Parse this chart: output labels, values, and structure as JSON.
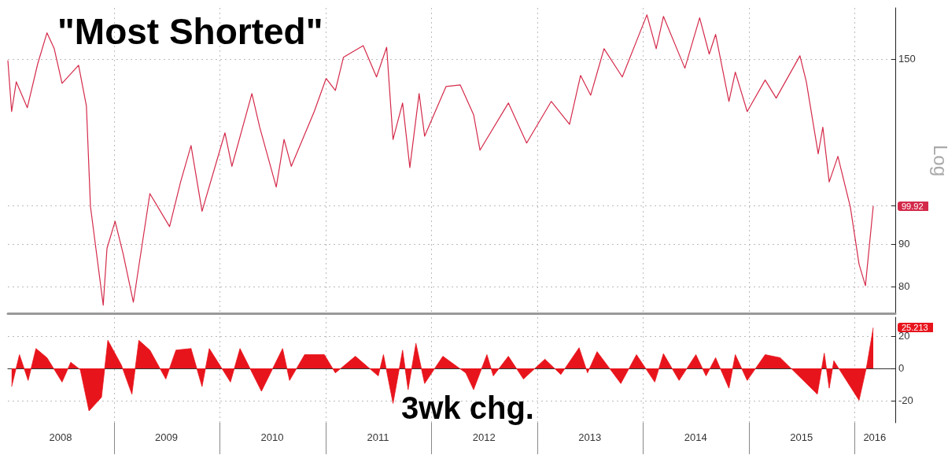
{
  "chart_data": [
    {
      "type": "line",
      "title": "\"Most Shorted\"",
      "ylabel": "Log",
      "log": "y",
      "grid": true,
      "tick_labels": "y",
      "xlim": [
        "2008-01-01",
        "2016-05-20"
      ],
      "ylim": [
        74.3,
        172.7
      ],
      "xticks": [
        {
          "value": "2009-01-01",
          "label": null
        },
        {
          "value": "2010-01-01",
          "label": null
        },
        {
          "value": "2011-01-01",
          "label": null
        },
        {
          "value": "2012-01-01",
          "label": null
        },
        {
          "value": "2013-01-01",
          "label": null
        },
        {
          "value": "2014-01-01",
          "label": null
        },
        {
          "value": "2015-01-01",
          "label": null
        },
        {
          "value": "2016-01-01",
          "label": null
        }
      ],
      "yticks": [
        80,
        90,
        {
          "value": 100,
          "label": null
        },
        150
      ],
      "value_labels": [
        null,
        null,
        null,
        null,
        null,
        null,
        null,
        null,
        null,
        null,
        null,
        null,
        null,
        null,
        null,
        null,
        null,
        null,
        null,
        null,
        null,
        null,
        null,
        null,
        null,
        null,
        null,
        null,
        null,
        null,
        null,
        null,
        null,
        null,
        null,
        null,
        null,
        null,
        null,
        null,
        null,
        null,
        null,
        null,
        null,
        null,
        null,
        null,
        null,
        null,
        null,
        null,
        null,
        null,
        null,
        null,
        null,
        null,
        null,
        null,
        null,
        null,
        null,
        null,
        null,
        null,
        null,
        null,
        null,
        null,
        null,
        null,
        null,
        "99.92"
      ],
      "series": [
        {
          "color": "#d42a4a",
          "x": [
            "2008-01-01",
            "2008-01-14",
            "2008-01-30",
            "2008-03-08",
            "2008-04-13",
            "2008-05-15",
            "2008-06-09",
            "2008-07-06",
            "2008-09-01",
            "2008-09-28",
            "2008-10-12",
            "2008-11-25",
            "2008-12-08",
            "2009-01-05",
            "2009-02-02",
            "2009-03-09",
            "2009-05-05",
            "2009-07-12",
            "2009-08-19",
            "2009-09-24",
            "2009-11-01",
            "2010-01-19",
            "2010-02-12",
            "2010-04-22",
            "2010-05-19",
            "2010-07-15",
            "2010-08-11",
            "2010-09-05",
            "2010-11-23",
            "2011-01-03",
            "2011-02-04",
            "2011-03-04",
            "2011-05-11",
            "2011-06-26",
            "2011-07-31",
            "2011-08-22",
            "2011-09-24",
            "2011-10-19",
            "2011-11-20",
            "2011-12-09",
            "2012-02-21",
            "2012-04-10",
            "2012-05-26",
            "2012-06-17",
            "2012-09-23",
            "2012-11-25",
            "2013-02-18",
            "2013-04-22",
            "2013-05-30",
            "2013-07-04",
            "2013-08-19",
            "2013-10-21",
            "2014-01-14",
            "2014-02-15",
            "2014-03-12",
            "2014-05-25",
            "2014-07-15",
            "2014-08-17",
            "2014-09-08",
            "2014-10-24",
            "2014-11-15",
            "2014-12-26",
            "2015-02-26",
            "2015-04-05",
            "2015-06-26",
            "2015-07-18",
            "2015-08-28",
            "2015-09-13",
            "2015-10-05",
            "2015-11-04",
            "2015-12-17",
            "2016-01-16",
            "2016-02-07",
            "2016-03-05"
          ],
          "values": [
            149.4,
            129.7,
            140.8,
            131.1,
            148.0,
            161.2,
            154.3,
            140.2,
            147.4,
            131.7,
            99.8,
            76.0,
            88.9,
            95.8,
            87.5,
            76.6,
            103.4,
            94.4,
            106.8,
            118.1,
            98.5,
            122.3,
            111.5,
            136.3,
            124.2,
            105.3,
            120.1,
            111.5,
            129.7,
            142.1,
            137.5,
            150.7,
            155.6,
            142.7,
            154.9,
            120.1,
            132.8,
            111.1,
            136.3,
            121.2,
            139.0,
            139.6,
            128.6,
            116.6,
            132.8,
            118.9,
            133.4,
            125.2,
            143.3,
            135.7,
            154.3,
            142.7,
            169.4,
            154.3,
            168.7,
            146.2,
            168.0,
            152.0,
            160.5,
            133.4,
            144.6,
            129.7,
            141.5,
            134.6,
            151.3,
            140.8,
            115.4,
            124.2,
            106.8,
            114.6,
            99.6,
            85.1,
            80.2,
            99.92
          ]
        }
      ]
    },
    {
      "type": "area",
      "title": "3wk chg.",
      "grid": true,
      "xlim": [
        "2008-01-01",
        "2016-05-20"
      ],
      "ylim": [
        -33.7,
        31.7
      ],
      "xticks": [
        {
          "value": "2008-07-01",
          "label": "2008"
        },
        {
          "value": "2009-01-01",
          "label": null
        },
        {
          "value": "2009-07-01",
          "label": "2009"
        },
        {
          "value": "2010-01-01",
          "label": null
        },
        {
          "value": "2010-07-01",
          "label": "2010"
        },
        {
          "value": "2011-01-01",
          "label": null
        },
        {
          "value": "2011-07-01",
          "label": "2011"
        },
        {
          "value": "2012-01-01",
          "label": null
        },
        {
          "value": "2012-07-01",
          "label": "2012"
        },
        {
          "value": "2013-01-01",
          "label": null
        },
        {
          "value": "2013-07-01",
          "label": "2013"
        },
        {
          "value": "2014-01-01",
          "label": null
        },
        {
          "value": "2014-07-01",
          "label": "2014"
        },
        {
          "value": "2015-01-01",
          "label": null
        },
        {
          "value": "2015-07-01",
          "label": "2015"
        },
        {
          "value": "2016-01-01",
          "label": null
        },
        {
          "value": "2016-03-10",
          "label": "2016"
        }
      ],
      "yticks": [
        -20,
        0,
        20
      ],
      "value_labels": [
        null,
        null,
        null,
        null,
        null,
        null,
        null,
        null,
        null,
        null,
        null,
        null,
        null,
        null,
        null,
        null,
        null,
        null,
        null,
        null,
        null,
        null,
        null,
        null,
        null,
        null,
        null,
        null,
        null,
        null,
        null,
        null,
        null,
        null,
        null,
        null,
        null,
        null,
        null,
        null,
        null,
        null,
        null,
        null,
        null,
        null,
        null,
        null,
        null,
        null,
        null,
        null,
        null,
        null,
        null,
        null,
        null,
        null,
        null,
        null,
        null,
        null,
        null,
        null,
        null,
        null,
        null,
        "25.213"
      ],
      "series": [
        {
          "color": "#e8141c",
          "x": [
            "2008-01-14",
            "2008-02-10",
            "2008-03-11",
            "2008-04-07",
            "2008-05-15",
            "2008-07-06",
            "2008-08-05",
            "2008-09-07",
            "2008-10-07",
            "2008-11-19",
            "2008-12-11",
            "2009-01-27",
            "2009-03-04",
            "2009-03-28",
            "2009-05-05",
            "2009-06-29",
            "2009-08-03",
            "2009-09-24",
            "2009-11-01",
            "2009-11-26",
            "2010-02-07",
            "2010-03-12",
            "2010-05-25",
            "2010-08-06",
            "2010-08-30",
            "2010-10-21",
            "2010-12-28",
            "2011-02-04",
            "2011-04-14",
            "2011-07-02",
            "2011-07-20",
            "2011-08-22",
            "2011-09-24",
            "2011-10-13",
            "2011-11-09",
            "2011-12-09",
            "2012-02-10",
            "2012-04-29",
            "2012-05-26",
            "2012-07-11",
            "2012-08-02",
            "2012-09-23",
            "2012-11-14",
            "2013-01-27",
            "2013-03-23",
            "2013-05-25",
            "2013-06-23",
            "2013-07-26",
            "2013-10-16",
            "2013-12-09",
            "2014-02-10",
            "2014-03-12",
            "2014-05-05",
            "2014-07-02",
            "2014-08-06",
            "2014-09-08",
            "2014-10-24",
            "2014-11-15",
            "2014-12-26",
            "2015-02-26",
            "2015-04-19",
            "2015-08-25",
            "2015-09-18",
            "2015-10-05",
            "2015-10-21",
            "2016-01-16",
            "2016-02-12",
            "2016-03-05"
          ],
          "values": [
            -11.3,
            8.5,
            -7.5,
            12.3,
            6.6,
            -8.5,
            3.8,
            -0.9,
            -26.4,
            -17.9,
            17.4,
            1.9,
            -16,
            17.4,
            11.3,
            -6.6,
            11.3,
            12.3,
            -11.3,
            12.3,
            -8.5,
            12.3,
            -14.2,
            12.3,
            -7.5,
            8.5,
            8.5,
            -2.8,
            7.5,
            -4.7,
            8.5,
            -21.7,
            11.3,
            -13.2,
            15.5,
            -9.4,
            7.5,
            -2.8,
            -13.2,
            8.5,
            -4.7,
            7.5,
            -6.6,
            5.7,
            -3.8,
            12.8,
            -2.8,
            10.4,
            -9.4,
            8.5,
            -8.5,
            9.1,
            -7.5,
            8.5,
            -4.7,
            6.6,
            -12.3,
            8.5,
            -7.5,
            8.5,
            6.6,
            -16,
            9.4,
            -12.3,
            4.7,
            -19.8,
            1.9,
            25.213
          ]
        }
      ]
    }
  ]
}
